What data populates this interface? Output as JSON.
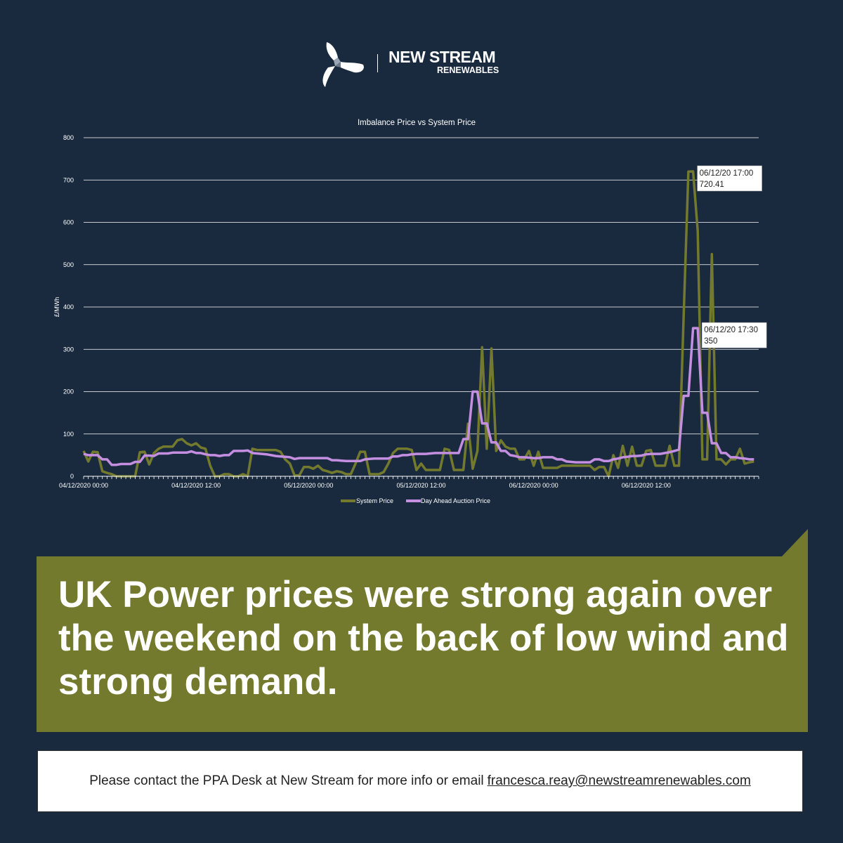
{
  "brand": {
    "name_line1": "NEW STREAM",
    "name_line2": "RENEWABLES"
  },
  "colors": {
    "background": "#192a3f",
    "system_price": "#737a2d",
    "day_ahead": "#c48fe0",
    "banner": "#747a2d"
  },
  "chart_data": {
    "type": "line",
    "title": "Imbalance Price vs System Price",
    "ylabel": "£/MWh",
    "ylim": [
      0,
      800
    ],
    "yticks": [
      0,
      100,
      200,
      300,
      400,
      500,
      600,
      700,
      800
    ],
    "x_interval": "30 min",
    "x_start": "04/12/2020 00:00",
    "xtick_labels": [
      "04/12/2020 00:00",
      "04/12/2020 12:00",
      "05/12/2020 00:00",
      "05/12/2020 12:00",
      "06/12/2020 00:00",
      "06/12/2020 12:00"
    ],
    "grid": "horizontal",
    "legend_position": "bottom",
    "series": [
      {
        "name": "System Price",
        "color": "#737a2d",
        "values": [
          60,
          35,
          58,
          57,
          12,
          8,
          5,
          0,
          0,
          0,
          0,
          0,
          57,
          58,
          28,
          55,
          65,
          70,
          70,
          70,
          85,
          88,
          78,
          73,
          78,
          68,
          65,
          25,
          0,
          0,
          5,
          5,
          0,
          0,
          5,
          0,
          65,
          62,
          62,
          62,
          62,
          62,
          58,
          40,
          30,
          2,
          2,
          22,
          22,
          18,
          25,
          15,
          12,
          8,
          12,
          10,
          5,
          5,
          30,
          58,
          58,
          5,
          5,
          5,
          10,
          30,
          55,
          65,
          65,
          65,
          62,
          15,
          30,
          15,
          15,
          15,
          15,
          65,
          62,
          15,
          15,
          15,
          124,
          18,
          60,
          305,
          65,
          302,
          60,
          85,
          70,
          65,
          65,
          40,
          40,
          60,
          25,
          58,
          20,
          20,
          20,
          20,
          25,
          25,
          25,
          25,
          25,
          25,
          25,
          15,
          22,
          22,
          0,
          50,
          20,
          72,
          25,
          70,
          25,
          25,
          60,
          62,
          25,
          25,
          25,
          72,
          25,
          25,
          380,
          720,
          720.41,
          580,
          40,
          40,
          525,
          40,
          40,
          28,
          40,
          40,
          65,
          30,
          33,
          35
        ]
      },
      {
        "name": "Day Ahead Auction Price",
        "color": "#c48fe0",
        "values": [
          53,
          50,
          50,
          50,
          40,
          40,
          27,
          27,
          29,
          29,
          29,
          34,
          34,
          49,
          49,
          48,
          54,
          54,
          54,
          56,
          56,
          56,
          56,
          59,
          55,
          55,
          52,
          50,
          50,
          48,
          50,
          50,
          60,
          60,
          60,
          61,
          55,
          54,
          53,
          52,
          50,
          48,
          47,
          46,
          45,
          41,
          43,
          43,
          43,
          43,
          43,
          43,
          43,
          38,
          38,
          37,
          36,
          36,
          36,
          36,
          40,
          41,
          42,
          42,
          42,
          42,
          47,
          47,
          50,
          50,
          52,
          53,
          53,
          53,
          54,
          55,
          55,
          55,
          55,
          55,
          55,
          88,
          88,
          200,
          200,
          125,
          125,
          80,
          80,
          60,
          60,
          50,
          48,
          45,
          45,
          44,
          43,
          43,
          45,
          45,
          45,
          40,
          40,
          35,
          34,
          33,
          33,
          33,
          33,
          40,
          40,
          36,
          36,
          40,
          42,
          45,
          46,
          48,
          48,
          49,
          52,
          53,
          53,
          53,
          55,
          57,
          60,
          63,
          190,
          190,
          350,
          350,
          150,
          150,
          78,
          78,
          55,
          55,
          45,
          45,
          43,
          42,
          40,
          40
        ]
      }
    ],
    "annotations": [
      {
        "series": "System Price",
        "index": 130,
        "line1": "06/12/20 17:00",
        "line2": "720.41"
      },
      {
        "series": "Day Ahead Auction Price",
        "index": 131,
        "line1": "06/12/20 17:30",
        "line2": "350"
      }
    ]
  },
  "headline": "UK Power prices were strong again over the weekend on the back of low wind and strong demand.",
  "footer": {
    "text": "Please contact the PPA Desk at New Stream for more info or email",
    "email": "francesca.reay@newstreamrenewables.com"
  }
}
